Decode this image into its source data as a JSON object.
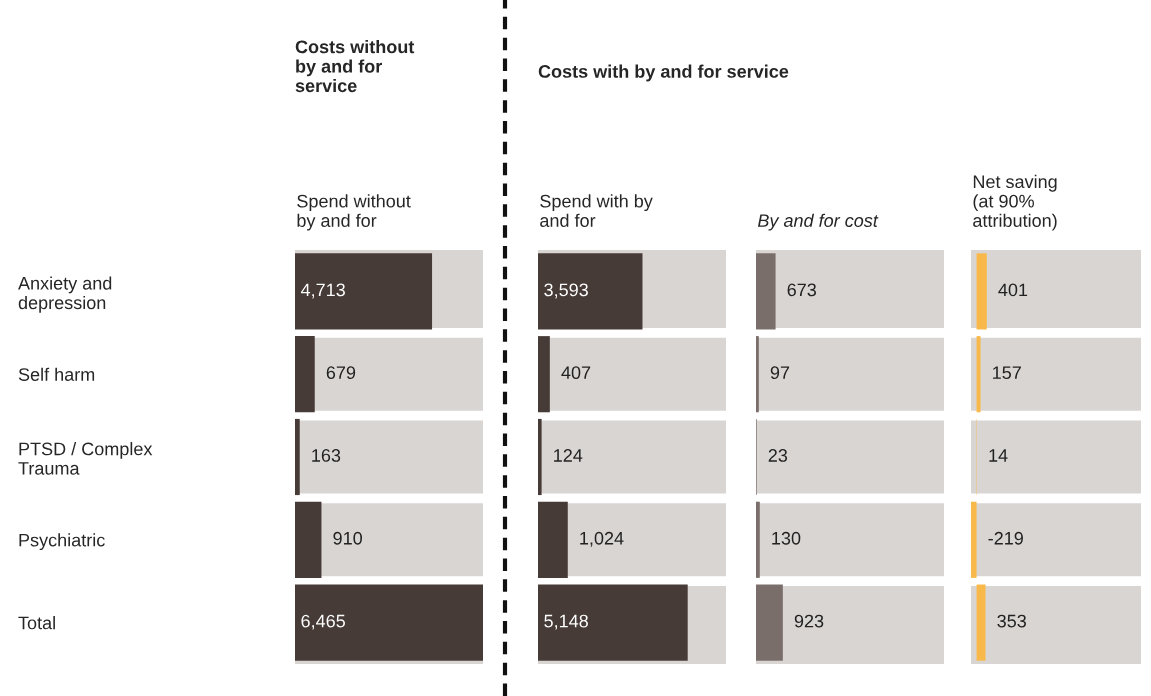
{
  "chart_data": [
    {
      "type": "bar",
      "orientation": "horizontal",
      "title": "Costs without\nby and for\nservice",
      "subtitle": "Spend without\nby and for",
      "categories": [
        "Anxiety and\ndepression",
        "Self harm",
        "PTSD / Complex\nTrauma",
        "Psychiatric",
        "Total"
      ],
      "values": [
        4713,
        679,
        163,
        910,
        6465
      ],
      "color": "#463b37",
      "xlim": [
        0,
        6465
      ],
      "value_labels": [
        "4,713",
        "679",
        "163",
        "910",
        "6,465"
      ],
      "tick_labels": "y"
    },
    {
      "type": "bar",
      "orientation": "horizontal",
      "title": "Costs with by and for service",
      "subtitle": "Spend with by\nand for",
      "categories": [
        null,
        null,
        null,
        null,
        null
      ],
      "values": [
        3593,
        407,
        124,
        1024,
        5148
      ],
      "color": "#463b37",
      "xlim": [
        0,
        6465
      ],
      "value_labels": [
        "3,593",
        "407",
        "124",
        "1,024",
        "5,148"
      ],
      "tick_labels": false
    },
    {
      "type": "bar",
      "orientation": "horizontal",
      "subtitle": "By and for cost",
      "categories": [
        null,
        null,
        null,
        null,
        null
      ],
      "values": [
        673,
        97,
        23,
        130,
        923
      ],
      "color": "#7a6e6a",
      "xlim": [
        0,
        6465
      ],
      "data_labels": true,
      "tick_labels": false
    },
    {
      "type": "bar",
      "orientation": "horizontal",
      "subtitle": "Net saving\n(at 90%\nattribution)",
      "categories": [
        null,
        null,
        null,
        null,
        null
      ],
      "values": [
        401,
        157,
        14,
        -219,
        353
      ],
      "color": "#f9b94a",
      "xlim": [
        -219,
        6465
      ],
      "data_labels": true,
      "tick_labels": false
    }
  ]
}
